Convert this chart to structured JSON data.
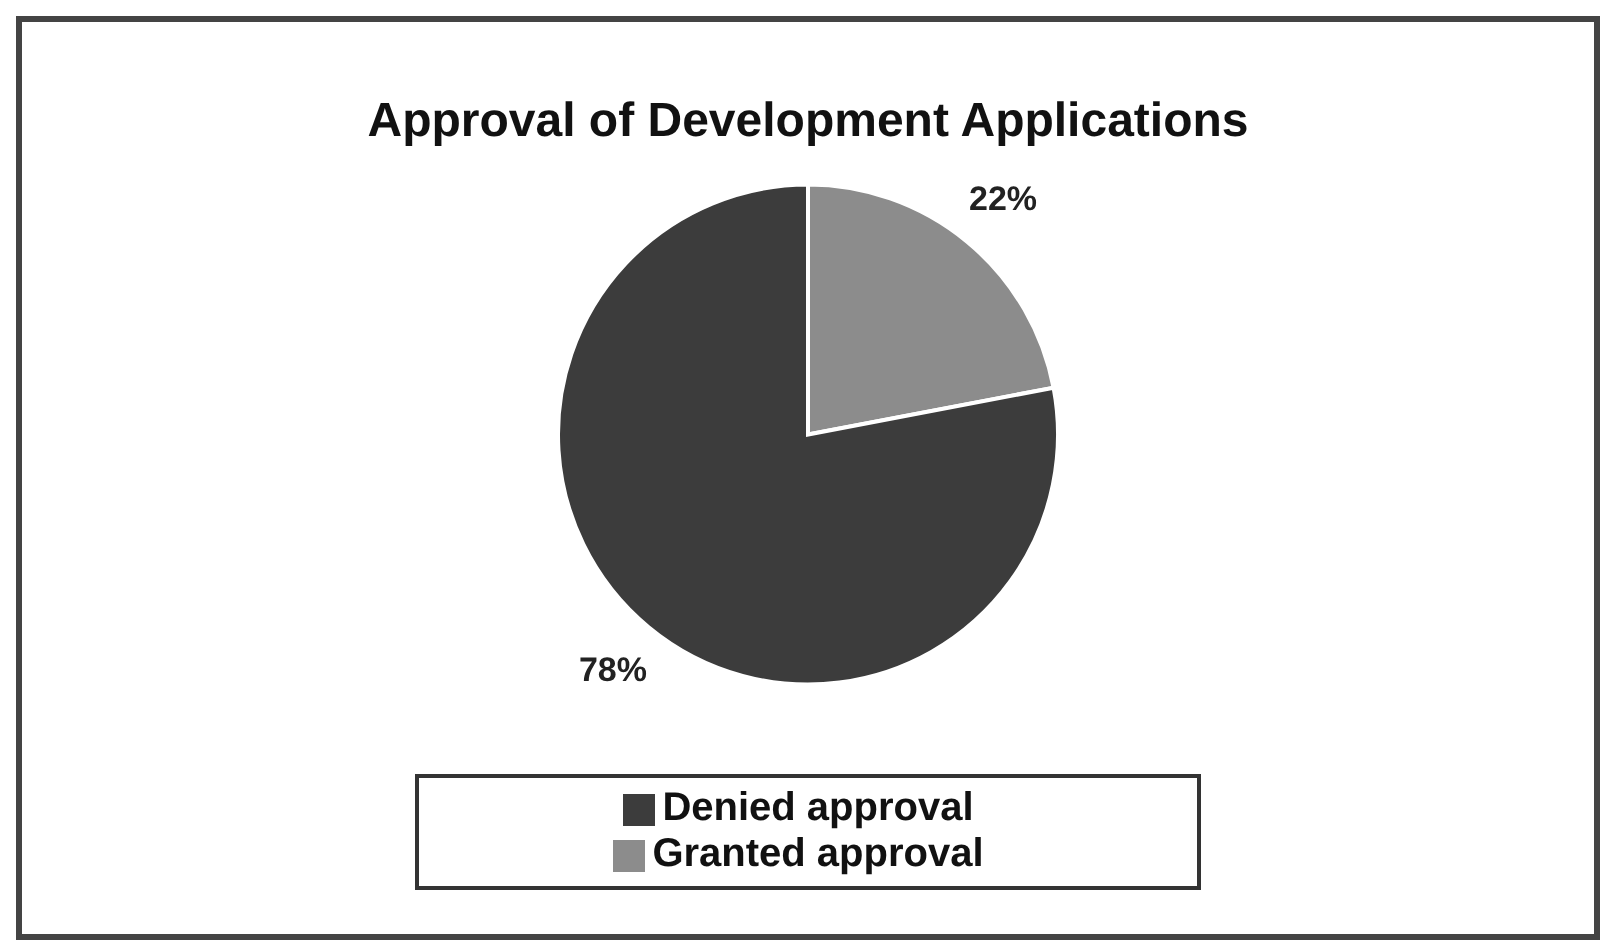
{
  "chart_data": {
    "type": "pie",
    "title": "Approval of Development Applications",
    "categories": [
      "Granted approval",
      "Denied approval"
    ],
    "values": [
      22,
      78
    ],
    "colors": [
      "#8c8c8c",
      "#3c3c3c"
    ],
    "value_labels": [
      "22%",
      "78%"
    ],
    "legend": "bottom"
  }
}
